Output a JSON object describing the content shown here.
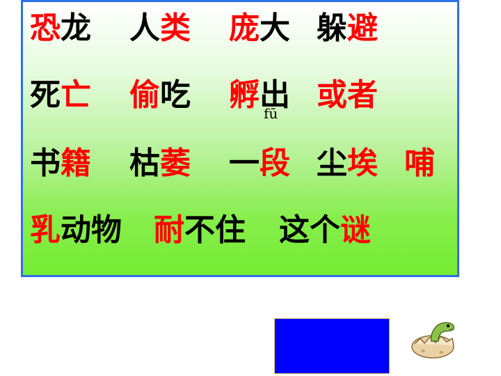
{
  "rows": [
    [
      [
        {
          "t": "恐",
          "c": "red"
        },
        {
          "t": "龙",
          "c": "blk"
        }
      ],
      [
        {
          "t": "人",
          "c": "blk"
        },
        {
          "t": "类",
          "c": "red"
        }
      ],
      [
        {
          "t": "庞",
          "c": "red"
        },
        {
          "t": "大",
          "c": "blk"
        }
      ],
      [
        {
          "t": "躲",
          "c": "blk"
        },
        {
          "t": "避",
          "c": "red"
        }
      ]
    ],
    [
      [
        {
          "t": "死",
          "c": "blk"
        },
        {
          "t": "亡",
          "c": "red"
        }
      ],
      [
        {
          "t": "偷",
          "c": "red"
        },
        {
          "t": "吃",
          "c": "blk"
        }
      ],
      [
        {
          "t": "孵",
          "c": "red"
        },
        {
          "t": "出",
          "c": "blk"
        }
      ],
      [
        {
          "t": "或",
          "c": "red"
        },
        {
          "t": "者",
          "c": "red"
        }
      ]
    ],
    [
      [
        {
          "t": "书",
          "c": "blk"
        },
        {
          "t": "籍",
          "c": "red"
        }
      ],
      [
        {
          "t": "枯",
          "c": "blk"
        },
        {
          "t": "萎",
          "c": "red"
        }
      ],
      [
        {
          "t": "一",
          "c": "blk"
        },
        {
          "t": "段",
          "c": "red"
        }
      ],
      [
        {
          "t": "尘",
          "c": "blk"
        },
        {
          "t": "埃",
          "c": "red"
        }
      ],
      [
        {
          "t": "哺",
          "c": "red"
        }
      ]
    ],
    [
      [
        {
          "t": "乳",
          "c": "red"
        },
        {
          "t": "动",
          "c": "blk"
        },
        {
          "t": "物",
          "c": "blk"
        }
      ],
      [
        {
          "t": "耐",
          "c": "red"
        },
        {
          "t": "不",
          "c": "blk"
        },
        {
          "t": "住",
          "c": "blk"
        }
      ],
      [
        {
          "t": "这",
          "c": "blk"
        },
        {
          "t": "个",
          "c": "blk"
        },
        {
          "t": "谜",
          "c": "red"
        }
      ]
    ]
  ],
  "pinyin": "fū",
  "colors": {
    "red": "#ff0000",
    "black": "#000000",
    "border": "#2f6fe8",
    "blue_box": "#0000ff"
  },
  "icons": {
    "dino": "dinosaur-hatching-egg-icon"
  }
}
